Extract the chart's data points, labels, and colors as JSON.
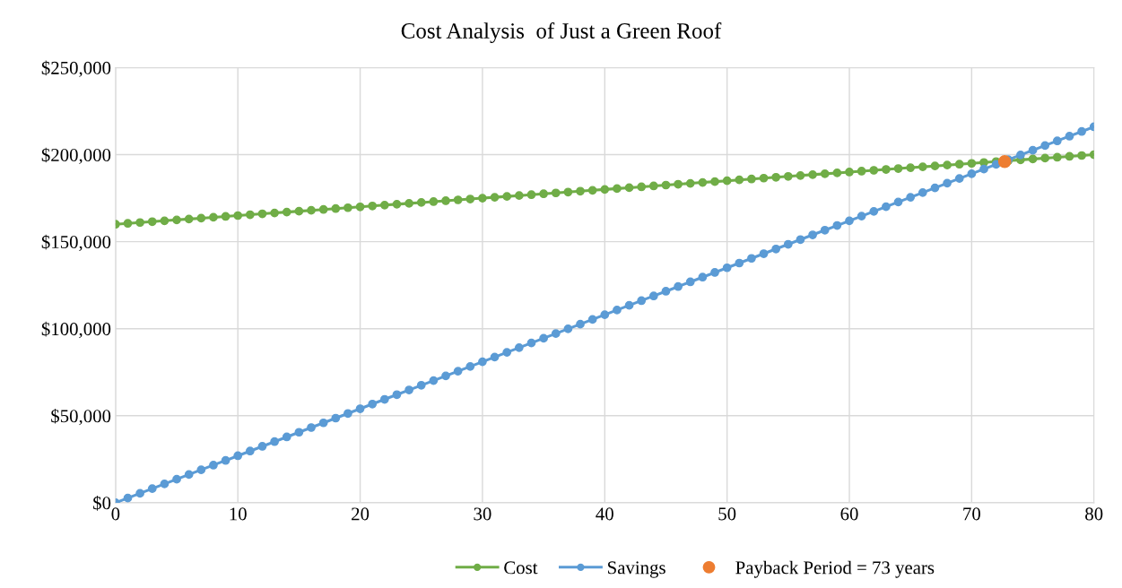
{
  "chart_data": {
    "type": "line",
    "title": "Cost Analysis  of Just a Green Roof",
    "x": [
      0,
      1,
      2,
      3,
      4,
      5,
      6,
      7,
      8,
      9,
      10,
      11,
      12,
      13,
      14,
      15,
      16,
      17,
      18,
      19,
      20,
      21,
      22,
      23,
      24,
      25,
      26,
      27,
      28,
      29,
      30,
      31,
      32,
      33,
      34,
      35,
      36,
      37,
      38,
      39,
      40,
      41,
      42,
      43,
      44,
      45,
      46,
      47,
      48,
      49,
      50,
      51,
      52,
      53,
      54,
      55,
      56,
      57,
      58,
      59,
      60,
      61,
      62,
      63,
      64,
      65,
      66,
      67,
      68,
      69,
      70,
      71,
      72,
      73,
      74,
      75,
      76,
      77,
      78,
      79,
      80
    ],
    "series": [
      {
        "name": "Cost",
        "color": "#70ad47",
        "marker": "circle",
        "values": [
          160000,
          160500,
          161000,
          161500,
          162000,
          162500,
          163000,
          163500,
          164000,
          164500,
          165000,
          165500,
          166000,
          166500,
          167000,
          167500,
          168000,
          168500,
          169000,
          169500,
          170000,
          170500,
          171000,
          171500,
          172000,
          172500,
          173000,
          173500,
          174000,
          174500,
          175000,
          175500,
          176000,
          176500,
          177000,
          177500,
          178000,
          178500,
          179000,
          179500,
          180000,
          180500,
          181000,
          181500,
          182000,
          182500,
          183000,
          183500,
          184000,
          184500,
          185000,
          185500,
          186000,
          186500,
          187000,
          187500,
          188000,
          188500,
          189000,
          189500,
          190000,
          190500,
          191000,
          191500,
          192000,
          192500,
          193000,
          193500,
          194000,
          194500,
          195000,
          195500,
          196000,
          196500,
          197000,
          197500,
          198000,
          198500,
          199000,
          199500,
          200000
        ]
      },
      {
        "name": "Savings",
        "color": "#5b9bd5",
        "marker": "circle",
        "values": [
          0,
          2700,
          5400,
          8100,
          10800,
          13500,
          16200,
          18900,
          21600,
          24300,
          27000,
          29700,
          32400,
          35100,
          37800,
          40500,
          43200,
          45900,
          48600,
          51300,
          54000,
          56700,
          59400,
          62100,
          64800,
          67500,
          70200,
          72900,
          75600,
          78300,
          81000,
          83700,
          86400,
          89100,
          91800,
          94500,
          97200,
          99900,
          102600,
          105300,
          108000,
          110700,
          113400,
          116100,
          118800,
          121500,
          124200,
          126900,
          129600,
          132300,
          135000,
          137700,
          140400,
          143100,
          145800,
          148500,
          151200,
          153900,
          156600,
          159300,
          162000,
          164700,
          167400,
          170100,
          172800,
          175500,
          178200,
          180900,
          183600,
          186300,
          189000,
          191700,
          194400,
          197100,
          199800,
          202500,
          205200,
          207900,
          210600,
          213300,
          216000
        ]
      },
      {
        "name": "Payback Period = 73 years",
        "type": "scatter",
        "color": "#ed7d31",
        "x": [
          72.7
        ],
        "values": [
          196000
        ]
      }
    ],
    "xlim": [
      0,
      80
    ],
    "xticks": [
      0,
      10,
      20,
      30,
      40,
      50,
      60,
      70,
      80
    ],
    "ylim": [
      0,
      250000
    ],
    "yticks": [
      {
        "value": 0,
        "label": "$0"
      },
      {
        "value": 50000,
        "label": "$50,000"
      },
      {
        "value": 100000,
        "label": "$100,000"
      },
      {
        "value": 150000,
        "label": "$150,000"
      },
      {
        "value": 200000,
        "label": "$200,000"
      },
      {
        "value": 250000,
        "label": "$250,000"
      }
    ],
    "grid": true,
    "legend": "bottom"
  }
}
